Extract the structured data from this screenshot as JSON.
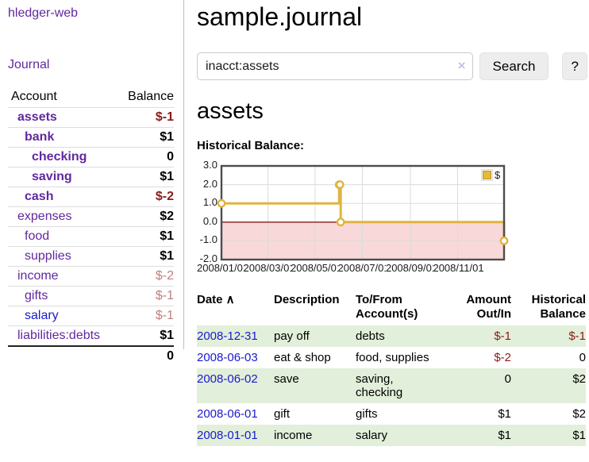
{
  "app": {
    "brand": "hledger-web",
    "nav_journal": "Journal"
  },
  "sidebar": {
    "accounts_header": {
      "account": "Account",
      "balance": "Balance"
    },
    "accounts": [
      {
        "name": "assets",
        "indent": 1,
        "bold": true,
        "balance": "$-1"
      },
      {
        "name": "bank",
        "indent": 2,
        "bold": true,
        "balance": "$1"
      },
      {
        "name": "checking",
        "indent": 3,
        "bold": true,
        "balance": "0"
      },
      {
        "name": "saving",
        "indent": 3,
        "bold": true,
        "balance": "$1"
      },
      {
        "name": "cash",
        "indent": 2,
        "bold": true,
        "balance": "$-2"
      },
      {
        "name": "expenses",
        "indent": 1,
        "bold": false,
        "balance": "$2"
      },
      {
        "name": "food",
        "indent": 2,
        "bold": false,
        "balance": "$1"
      },
      {
        "name": "supplies",
        "indent": 2,
        "bold": false,
        "balance": "$1"
      },
      {
        "name": "income",
        "indent": 1,
        "bold": false,
        "balance": "$-2"
      },
      {
        "name": "gifts",
        "indent": 2,
        "bold": false,
        "balance": "$-1"
      },
      {
        "name": "salary",
        "indent": 2,
        "bold": false,
        "balance": "$-1",
        "blue": true
      },
      {
        "name": "liabilities:debts",
        "indent": 1,
        "bold": false,
        "balance": "$1"
      }
    ],
    "total": "0"
  },
  "header": {
    "title": "sample.journal"
  },
  "search": {
    "value": "inacct:assets",
    "clear": "×",
    "button": "Search",
    "help": "?"
  },
  "account_page": {
    "heading": "assets",
    "chart_label": "Historical Balance:"
  },
  "chart_data": {
    "type": "line",
    "step": true,
    "title": "Historical Balance",
    "legend": "$",
    "legend_position": "top-right",
    "grid": true,
    "xrange": [
      "2008-01-01",
      "2008-12-31"
    ],
    "ylim": [
      -2,
      3
    ],
    "yticks": [
      "3.0",
      "2.0",
      "1.0",
      "0.0",
      "-1.0",
      "-2.0"
    ],
    "xticks": [
      "2008/01/01",
      "2008/03/01",
      "2008/05/01",
      "2008/07/01",
      "2008/09/01",
      "2008/11/01"
    ],
    "series": [
      {
        "name": "$",
        "color": "#e0b440",
        "points": [
          [
            "2008-01-01",
            1
          ],
          [
            "2008-06-01",
            2
          ],
          [
            "2008-06-02",
            2
          ],
          [
            "2008-06-03",
            0
          ],
          [
            "2008-12-31",
            -1
          ]
        ]
      }
    ],
    "negative_region_color": "#f8d8d8",
    "zero_line_color": "#8b1a1a",
    "grid_color": "#dcdcdc",
    "border_color": "#4d4d4d"
  },
  "table": {
    "headers": [
      [
        "Date ∧"
      ],
      [
        "Description"
      ],
      [
        "To/From",
        "Account(s)"
      ],
      [
        "Amount",
        "Out/In"
      ],
      [
        "Historical",
        "Balance"
      ]
    ],
    "rows": [
      {
        "date": "2008-12-31",
        "description": "pay off",
        "accounts": "debts",
        "amount": "$-1",
        "balance": "$-1"
      },
      {
        "date": "2008-06-03",
        "description": "eat & shop",
        "accounts": "food, supplies",
        "amount": "$-2",
        "balance": "0"
      },
      {
        "date": "2008-06-02",
        "description": "save",
        "accounts": "saving, checking",
        "amount": "0",
        "balance": "$2"
      },
      {
        "date": "2008-06-01",
        "description": "gift",
        "accounts": "gifts",
        "amount": "$1",
        "balance": "$2"
      },
      {
        "date": "2008-01-01",
        "description": "income",
        "accounts": "salary",
        "amount": "$1",
        "balance": "$1"
      }
    ]
  }
}
